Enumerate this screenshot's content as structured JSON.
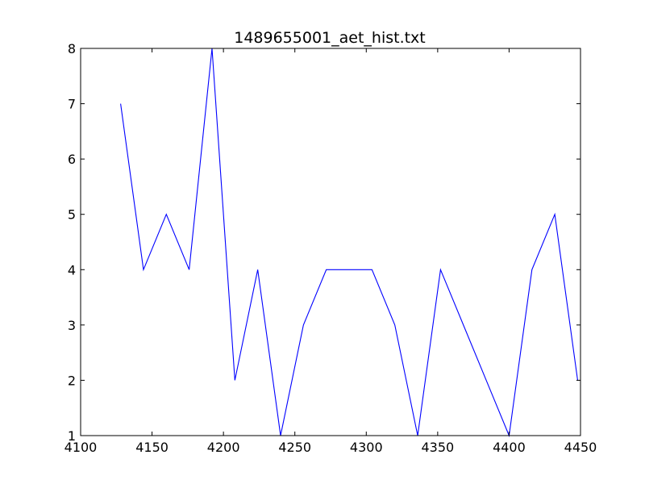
{
  "chart_data": {
    "type": "line",
    "title": "1489655001_aet_hist.txt",
    "xlabel": "",
    "ylabel": "",
    "xlim": [
      4100,
      4450
    ],
    "ylim": [
      1,
      8
    ],
    "x_ticks": [
      4100,
      4150,
      4200,
      4250,
      4300,
      4350,
      4400,
      4450
    ],
    "x_tick_labels": [
      "4100",
      "4150",
      "4200",
      "4250",
      "4300",
      "4350",
      "4400",
      "4450"
    ],
    "y_ticks": [
      1,
      2,
      3,
      4,
      5,
      6,
      7,
      8
    ],
    "y_tick_labels": [
      "1",
      "2",
      "3",
      "4",
      "5",
      "6",
      "7",
      "8"
    ],
    "grid": false,
    "legend": "none",
    "series": [
      {
        "color": "#0000ff",
        "x": [
          4128,
          4144,
          4160,
          4176,
          4192,
          4208,
          4224,
          4240,
          4256,
          4272,
          4288,
          4304,
          4320,
          4336,
          4352,
          4368,
          4384,
          4400,
          4416,
          4432,
          4448
        ],
        "y": [
          7,
          4,
          5,
          4,
          8,
          2,
          4,
          1,
          3,
          4,
          4,
          4,
          3,
          1,
          4,
          3,
          2,
          1,
          4,
          5,
          2
        ]
      }
    ]
  }
}
